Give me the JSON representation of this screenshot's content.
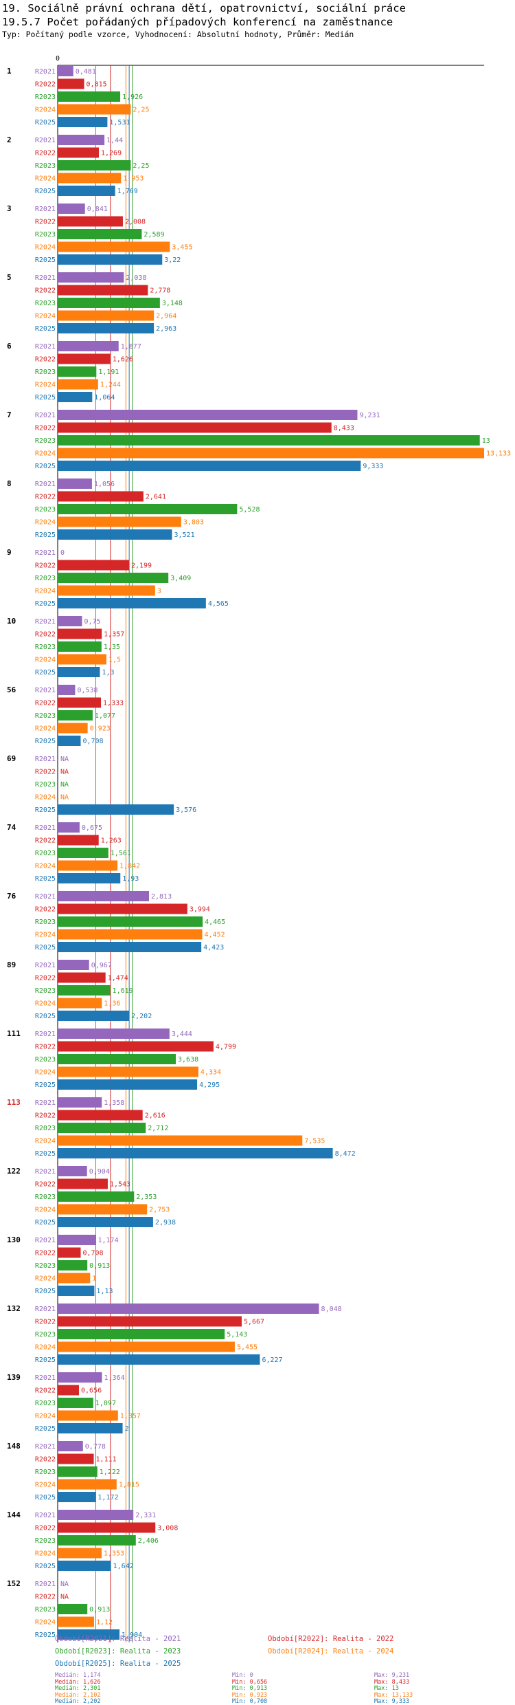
{
  "chart_data": {
    "type": "bar",
    "orientation": "horizontal",
    "title_line1": "19. Sociálně právní ochrana dětí, opatrovnictví, sociální práce",
    "title_line2": "19.5.7 Počet pořádaných případových konferencí na zaměstnance",
    "subtitle": "Typ: Počítaný podle vzorce, Vyhodnocení: Absolutní hodnoty, Průměr: Medián",
    "axis_zero_label": "0",
    "xlim": [
      0,
      13.133
    ],
    "na_label": "NA",
    "highlight_category": "113",
    "series": [
      {
        "name": "R2021",
        "color": "#9467bd",
        "legend": "Období[R2021]: Realita - 2021",
        "values": [
          0.481,
          1.44,
          0.841,
          2.038,
          1.877,
          9.231,
          1.056,
          0,
          0.75,
          0.538,
          null,
          0.675,
          2.813,
          0.967,
          3.444,
          1.358,
          0.904,
          1.174,
          8.048,
          1.364,
          0.778,
          2.331,
          null
        ],
        "labels": [
          "0,481",
          "1,44",
          "0,841",
          "2,038",
          "1,877",
          "9,231",
          "1,056",
          "0",
          "0,75",
          "0,538",
          "NA",
          "0,675",
          "2,813",
          "0,967",
          "3,444",
          "1,358",
          "0,904",
          "1,174",
          "8,048",
          "1,364",
          "0,778",
          "2,331",
          "NA"
        ]
      },
      {
        "name": "R2022",
        "color": "#d62728",
        "legend": "Období[R2022]: Realita - 2022",
        "values": [
          0.815,
          1.269,
          2.008,
          2.778,
          1.626,
          8.433,
          2.641,
          2.199,
          1.357,
          1.333,
          null,
          1.263,
          3.994,
          1.474,
          4.799,
          2.616,
          1.543,
          0.708,
          5.667,
          0.656,
          1.111,
          3.008,
          null
        ],
        "labels": [
          "0,815",
          "1,269",
          "2,008",
          "2,778",
          "1,626",
          "8,433",
          "2,641",
          "2,199",
          "1,357",
          "1,333",
          "NA",
          "1,263",
          "3,994",
          "1,474",
          "4,799",
          "2,616",
          "1,543",
          "0,708",
          "5,667",
          "0,656",
          "1,111",
          "3,008",
          "NA"
        ]
      },
      {
        "name": "R2023",
        "color": "#2ca02c",
        "legend": "Období[R2023]: Realita - 2023",
        "values": [
          1.926,
          2.25,
          2.589,
          3.148,
          1.191,
          13,
          5.528,
          3.409,
          1.35,
          1.077,
          null,
          1.561,
          4.465,
          1.619,
          3.638,
          2.712,
          2.353,
          0.913,
          5.143,
          1.097,
          1.222,
          2.406,
          0.913
        ],
        "labels": [
          "1,926",
          "2,25",
          "2,589",
          "3,148",
          "1,191",
          "13",
          "5,528",
          "3,409",
          "1,35",
          "1,077",
          "NA",
          "1,561",
          "4,465",
          "1,619",
          "3,638",
          "2,712",
          "2,353",
          "0,913",
          "5,143",
          "1,097",
          "1,222",
          "2,406",
          "0,913"
        ]
      },
      {
        "name": "R2024",
        "color": "#ff7f0e",
        "legend": "Období[R2024]: Realita - 2024",
        "values": [
          2.25,
          1.953,
          3.455,
          2.964,
          1.244,
          13.133,
          3.803,
          3,
          1.5,
          0.923,
          null,
          1.842,
          4.452,
          1.36,
          4.334,
          7.535,
          2.753,
          1,
          5.455,
          1.857,
          1.815,
          1.353,
          1.12
        ],
        "labels": [
          "2,25",
          "1,953",
          "3,455",
          "2,964",
          "1,244",
          "13,133",
          "3,803",
          "3",
          "1,5",
          "0,923",
          "NA",
          "1,842",
          "4,452",
          "1,36",
          "4,334",
          "7,535",
          "2,753",
          "1",
          "5,455",
          "1,857",
          "1,815",
          "1,353",
          "1,12"
        ]
      },
      {
        "name": "R2025",
        "color": "#1f77b4",
        "legend": "Období[R2025]: Realita - 2025",
        "values": [
          1.531,
          1.769,
          3.22,
          2.963,
          1.064,
          9.333,
          3.521,
          4.565,
          1.3,
          0.708,
          3.576,
          1.93,
          4.423,
          2.202,
          4.295,
          8.472,
          2.938,
          1.13,
          6.227,
          2,
          1.172,
          1.642,
          1.904
        ],
        "labels": [
          "1,531",
          "1,769",
          "3,22",
          "2,963",
          "1,064",
          "9,333",
          "3,521",
          "4,565",
          "1,3",
          "0,708",
          "3,576",
          "1,93",
          "4,423",
          "2,202",
          "4,295",
          "8,472",
          "2,938",
          "1,13",
          "6,227",
          "2",
          "1,172",
          "1,642",
          "1,904"
        ]
      }
    ],
    "categories": [
      "1",
      "2",
      "3",
      "5",
      "6",
      "7",
      "8",
      "9",
      "10",
      "56",
      "69",
      "74",
      "76",
      "89",
      "111",
      "113",
      "122",
      "130",
      "132",
      "139",
      "148",
      "144",
      "152"
    ],
    "medians": [
      1.174,
      1.626,
      2.301,
      2.102,
      2.202
    ],
    "stats": [
      {
        "median": "Medián: 1,174",
        "min": "Min: 0",
        "max": "Max: 9,231"
      },
      {
        "median": "Medián: 1,626",
        "min": "Min: 0,656",
        "max": "Max: 8,433"
      },
      {
        "median": "Medián: 2,301",
        "min": "Min: 0,913",
        "max": "Max: 13"
      },
      {
        "median": "Medián: 2,102",
        "min": "Min: 0,923",
        "max": "Max: 13,133"
      },
      {
        "median": "Medián: 2,202",
        "min": "Min: 0,708",
        "max": "Max: 9,333"
      }
    ]
  }
}
